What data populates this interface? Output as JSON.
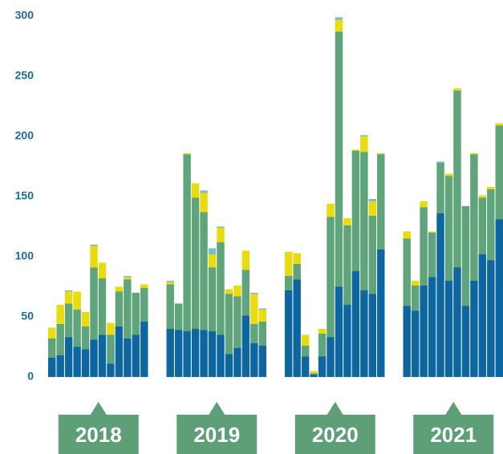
{
  "chart_data": {
    "type": "bar",
    "stacked": true,
    "ylim": [
      0,
      300
    ],
    "yticks": [
      0,
      50,
      100,
      150,
      200,
      250,
      300
    ],
    "grid": false,
    "groups": [
      "2018",
      "2019",
      "2020",
      "2021"
    ],
    "categories": [
      null,
      null,
      null,
      null,
      null,
      null,
      null,
      null,
      null,
      null,
      null,
      null,
      null,
      null,
      null,
      null,
      null,
      null,
      null,
      null,
      null,
      null,
      null,
      null,
      null,
      null,
      null,
      null,
      null,
      null,
      null,
      null,
      null,
      null,
      null,
      null,
      null,
      null,
      null,
      null,
      null,
      null,
      null,
      null,
      null,
      null,
      null,
      null
    ],
    "series": [
      {
        "color": "#0e66a0",
        "values": [
          16,
          18,
          33,
          25,
          23,
          31,
          35,
          11,
          42,
          32,
          35,
          46,
          40,
          39,
          38,
          40,
          39,
          38,
          35,
          19,
          24,
          51,
          28,
          26,
          72,
          81,
          17,
          2,
          17,
          33,
          75,
          60,
          88,
          72,
          69,
          106,
          59,
          55,
          76,
          83,
          136,
          80,
          91,
          59,
          80,
          102,
          97,
          131
        ]
      },
      {
        "color": "#5fa47b",
        "values": [
          16,
          26,
          28,
          31,
          19,
          60,
          47,
          24,
          29,
          49,
          35,
          28,
          37,
          22,
          147,
          109,
          98,
          53,
          77,
          50,
          43,
          38,
          16,
          20,
          12,
          13,
          9,
          1,
          19,
          100,
          212,
          66,
          100,
          115,
          65,
          79,
          56,
          21,
          65,
          37,
          42,
          87,
          147,
          83,
          105,
          47,
          59,
          78
        ]
      },
      {
        "color": "#e8dc0e",
        "values": [
          9,
          16,
          10,
          15,
          12,
          18,
          13,
          10,
          4,
          2,
          0,
          3,
          2,
          0,
          1,
          12,
          16,
          11,
          12,
          4,
          9,
          16,
          25,
          10,
          20,
          9,
          9,
          2,
          4,
          11,
          10,
          6,
          1,
          13,
          12,
          1,
          6,
          4,
          5,
          1,
          0,
          2,
          2,
          0,
          1,
          2,
          2,
          2
        ]
      },
      {
        "color": "#7cb9d8",
        "values": [
          0,
          0,
          1,
          0,
          0,
          1,
          0,
          0,
          0,
          1,
          0,
          0,
          1,
          0,
          0,
          0,
          2,
          5,
          1,
          0,
          0,
          0,
          1,
          1,
          0,
          0,
          0,
          0,
          0,
          0,
          2,
          0,
          0,
          1,
          2,
          0,
          0,
          0,
          0,
          0,
          1,
          0,
          0,
          0,
          0,
          0,
          0,
          0
        ]
      }
    ]
  }
}
